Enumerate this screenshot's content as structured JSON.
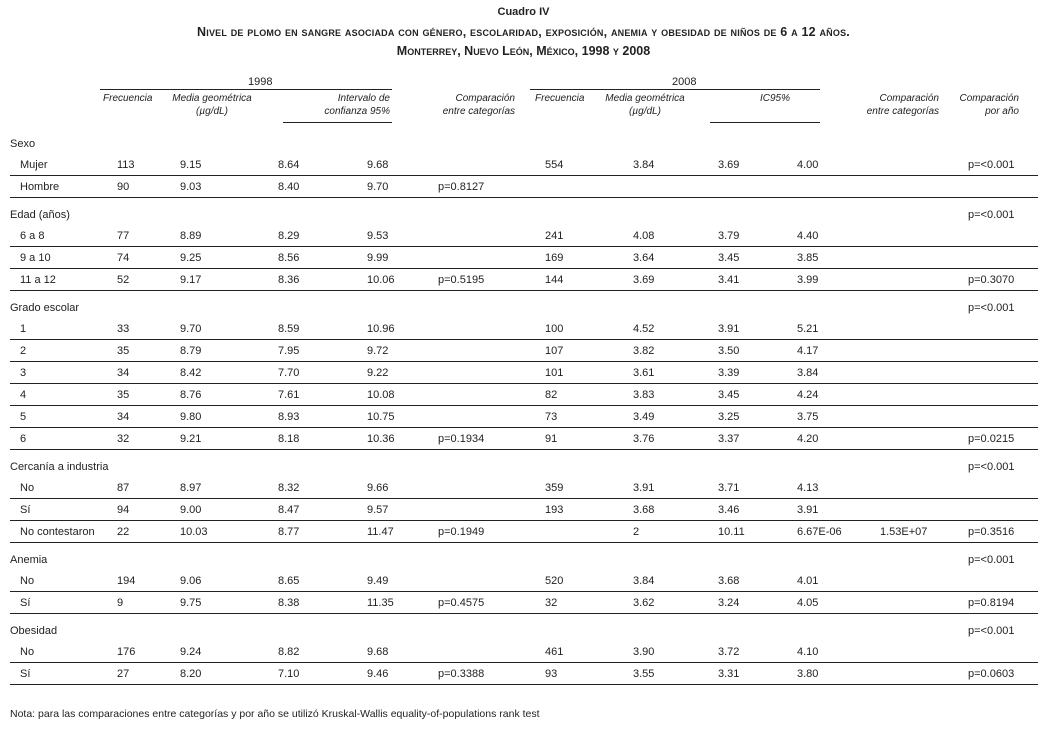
{
  "title": {
    "label": "Cuadro IV",
    "line1": "Nivel de  plomo en sangre  asociada con género, escolaridad, exposición,  anemia y obesidad de niños de 6 a 12 años.",
    "line2": "Monterrey, Nuevo León, México, 1998 y 2008"
  },
  "headers": {
    "year1": "1998",
    "year2": "2008",
    "freq1": "Frecuencia",
    "media1_a": "Media geométrica",
    "media1_b": "(µg/dL)",
    "ic1_a": "Intervalo de",
    "ic1_b": "confianza 95%",
    "comp1_a": "Comparación",
    "comp1_b": "entre categorías",
    "freq2": "Frecuencia",
    "media2_a": "Media geométrica",
    "media2_b": "(µg/dL)",
    "ic2": "IC95%",
    "comp2_a": "Comparación",
    "comp2_b": "entre categorías",
    "anio_a": "Comparación",
    "anio_b": "por año"
  },
  "groups": [
    {
      "label": "Sexo",
      "anio": "",
      "rows": [
        [
          "Mujer",
          "113",
          "9.15",
          "8.64",
          "9.68",
          "",
          "554",
          "3.84",
          "3.69",
          "4.00",
          "",
          "p=<0.001"
        ],
        [
          "Hombre",
          "90",
          "9.03",
          "8.40",
          "9.70",
          "p=0.8127",
          "",
          "",
          "",
          "",
          "",
          ""
        ]
      ]
    },
    {
      "label": "Edad (años)",
      "anio": "p=<0.001",
      "rows": [
        [
          "6 a 8",
          "77",
          "8.89",
          "8.29",
          "9.53",
          "",
          "241",
          "4.08",
          "3.79",
          "4.40",
          "",
          ""
        ],
        [
          "9 a 10",
          "74",
          "9.25",
          "8.56",
          "9.99",
          "",
          "169",
          "3.64",
          "3.45",
          "3.85",
          "",
          ""
        ],
        [
          "11 a 12",
          "52",
          "9.17",
          "8.36",
          "10.06",
          "p=0.5195",
          "144",
          "3.69",
          "3.41",
          "3.99",
          "",
          "p=0.3070"
        ]
      ]
    },
    {
      "label": "Grado escolar",
      "anio": "p=<0.001",
      "rows": [
        [
          "1",
          "33",
          "9.70",
          "8.59",
          "10.96",
          "",
          "100",
          "4.52",
          "3.91",
          "5.21",
          "",
          ""
        ],
        [
          "2",
          "35",
          "8.79",
          "7.95",
          "9.72",
          "",
          "107",
          "3.82",
          "3.50",
          "4.17",
          "",
          ""
        ],
        [
          "3",
          "34",
          "8.42",
          "7.70",
          "9.22",
          "",
          "101",
          "3.61",
          "3.39",
          "3.84",
          "",
          ""
        ],
        [
          "4",
          "35",
          "8.76",
          "7.61",
          "10.08",
          "",
          "82",
          "3.83",
          "3.45",
          "4.24",
          "",
          ""
        ],
        [
          "5",
          "34",
          "9.80",
          "8.93",
          "10.75",
          "",
          "73",
          "3.49",
          "3.25",
          "3.75",
          "",
          ""
        ],
        [
          "6",
          "32",
          "9.21",
          "8.18",
          "10.36",
          "p=0.1934",
          "91",
          "3.76",
          "3.37",
          "4.20",
          "",
          "p=0.0215"
        ]
      ]
    },
    {
      "label": "Cercanía a industria",
      "anio": "p=<0.001",
      "rows": [
        [
          "No",
          "87",
          "8.97",
          "8.32",
          "9.66",
          "",
          "359",
          "3.91",
          "3.71",
          "4.13",
          "",
          ""
        ],
        [
          "Sí",
          "94",
          "9.00",
          "8.47",
          "9.57",
          "",
          "193",
          "3.68",
          "3.46",
          "3.91",
          "",
          ""
        ],
        [
          "No contestaron",
          "22",
          "10.03",
          "8.77",
          "11.47",
          "p=0.1949",
          "",
          "2",
          "10.11",
          "6.67E-06",
          "1.53E+07",
          "p=0.3516"
        ]
      ]
    },
    {
      "label": "Anemia",
      "anio": "p=<0.001",
      "rows": [
        [
          "No",
          "194",
          "9.06",
          "8.65",
          "9.49",
          "",
          "520",
          "3.84",
          "3.68",
          "4.01",
          "",
          ""
        ],
        [
          "Sí",
          "9",
          "9.75",
          "8.38",
          "11.35",
          "p=0.4575",
          "32",
          "3.62",
          "3.24",
          "4.05",
          "",
          "p=0.8194"
        ]
      ]
    },
    {
      "label": "Obesidad",
      "anio": "p=<0.001",
      "rows": [
        [
          "No",
          "176",
          "9.24",
          "8.82",
          "9.68",
          "",
          "461",
          "3.90",
          "3.72",
          "4.10",
          "",
          ""
        ],
        [
          "Sí",
          "27",
          "8.20",
          "7.10",
          "9.46",
          "p=0.3388",
          "93",
          "3.55",
          "3.31",
          "3.80",
          "",
          "p=0.0603"
        ]
      ]
    }
  ],
  "note": "Nota: para las comparaciones entre categorías y por año se utilizó Kruskal-Wallis equality-of-populations rank test"
}
